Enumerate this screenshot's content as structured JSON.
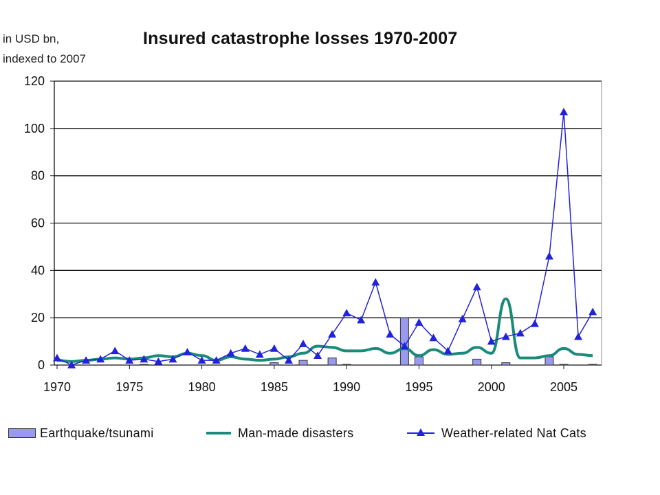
{
  "chart_data": {
    "type": "bar+line",
    "title": "Insured catastrophe losses 1970-2007",
    "ylabel_line1": "in USD bn,",
    "ylabel_line2": "indexed to 2007",
    "ylim": [
      0,
      120
    ],
    "xlim": [
      1970,
      2007
    ],
    "y_ticks": [
      "0",
      "20",
      "40",
      "60",
      "80",
      "100",
      "120"
    ],
    "x_ticks": [
      "1970",
      "1975",
      "1980",
      "1985",
      "1990",
      "1995",
      "2000",
      "2005"
    ],
    "grid": "horizontal",
    "legend_placement": "bottom",
    "years": [
      1970,
      1971,
      1972,
      1973,
      1974,
      1975,
      1976,
      1977,
      1978,
      1979,
      1980,
      1981,
      1982,
      1983,
      1984,
      1985,
      1986,
      1987,
      1988,
      1989,
      1990,
      1991,
      1992,
      1993,
      1994,
      1995,
      1996,
      1997,
      1998,
      1999,
      2000,
      2001,
      2002,
      2003,
      2004,
      2005,
      2006,
      2007
    ],
    "series": [
      {
        "name": "Earthquake/tsunami",
        "type": "bar",
        "color": "#9999ee",
        "values": [
          0,
          0,
          0,
          0,
          0,
          0,
          0.3,
          0,
          0,
          0,
          0,
          0,
          0,
          0,
          0,
          1,
          0,
          2,
          0,
          3,
          0.3,
          0,
          0,
          0,
          20,
          3.5,
          0,
          0,
          0,
          2.5,
          0,
          1,
          0,
          0,
          3.5,
          0.3,
          0,
          0.3
        ]
      },
      {
        "name": "Man-made disasters",
        "type": "line",
        "color": "#1a8a7a",
        "values": [
          2,
          1.5,
          2,
          2.5,
          3,
          2.5,
          3,
          4,
          3.5,
          5,
          4,
          2,
          3.5,
          2.5,
          2,
          2.5,
          3.5,
          5,
          8,
          7.5,
          6,
          6,
          7,
          5,
          7,
          4,
          6.5,
          4.5,
          5,
          7.5,
          5,
          28,
          3,
          3,
          4,
          7,
          4.5,
          4
        ]
      },
      {
        "name": "Weather-related Nat Cats",
        "type": "line-marker",
        "color": "#2222dd",
        "values": [
          3,
          0,
          2,
          2.5,
          6,
          2,
          2.5,
          1.5,
          2.5,
          5.5,
          2,
          2,
          5,
          7,
          4.5,
          7,
          2,
          9,
          4,
          13,
          22,
          19,
          35,
          13,
          8,
          18,
          11.5,
          6,
          19.5,
          33,
          10,
          12,
          13.5,
          17.5,
          46,
          107,
          12,
          22.5
        ]
      }
    ]
  }
}
